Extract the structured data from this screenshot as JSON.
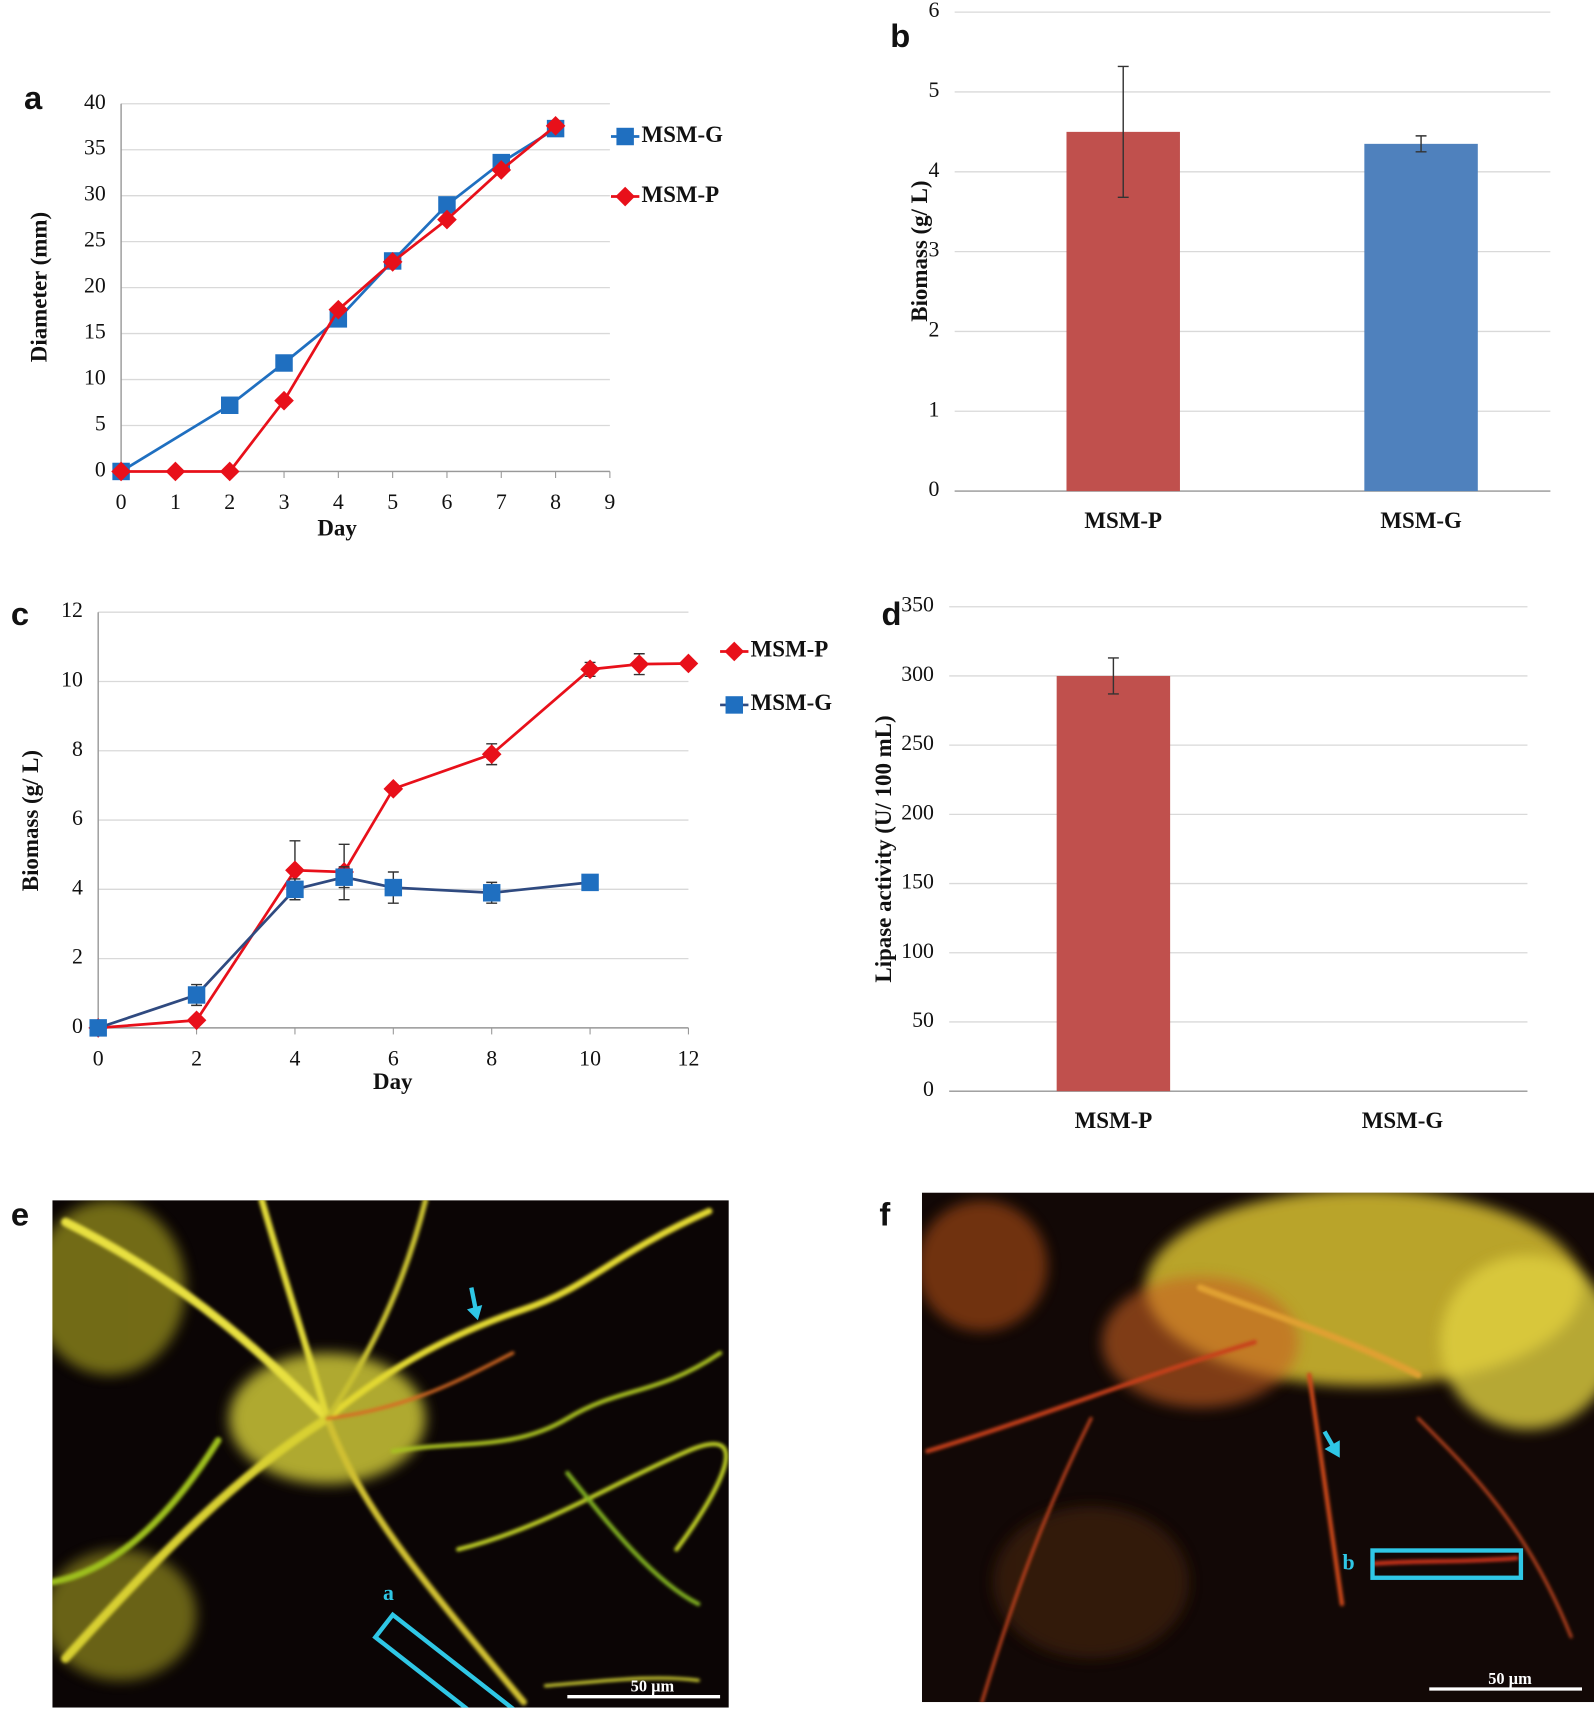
{
  "chart_data": [
    {
      "panel": "a",
      "type": "line",
      "x_label": "Day",
      "y_label": "Diameter (mm)",
      "xlim": [
        0,
        9
      ],
      "xticks": [
        0,
        1,
        2,
        3,
        4,
        5,
        6,
        7,
        8,
        9
      ],
      "ylim": [
        0,
        40
      ],
      "yticks": [
        0,
        5,
        10,
        15,
        20,
        25,
        30,
        35,
        40
      ],
      "grid": true,
      "legend": "right",
      "series": [
        {
          "name": "MSM-G",
          "color": "#1f6fc0",
          "line_color": "#1f6fc0",
          "marker": "square",
          "x": [
            0,
            2,
            3,
            4,
            5,
            6,
            7,
            8
          ],
          "values": [
            0,
            7.2,
            11.8,
            16.6,
            22.9,
            29,
            33.6,
            37.3
          ]
        },
        {
          "name": "MSM-P",
          "color": "#e8101a",
          "line_color": "#e8101a",
          "marker": "diamond",
          "x": [
            0,
            1,
            2,
            3,
            4,
            5,
            6,
            7,
            8
          ],
          "values": [
            0,
            0,
            0,
            7.7,
            17.6,
            22.8,
            27.4,
            32.8,
            37.6
          ]
        }
      ]
    },
    {
      "panel": "b",
      "type": "bar",
      "y_label": "Biomass (g/ L)",
      "categories": [
        "MSM-P",
        "MSM-G"
      ],
      "values": [
        4.5,
        4.35
      ],
      "errors": [
        0.82,
        0.1
      ],
      "colors": [
        "#c0504d",
        "#4f81bd"
      ],
      "ylim": [
        0,
        6
      ],
      "yticks": [
        0,
        1,
        2,
        3,
        4,
        5,
        6
      ],
      "grid": true
    },
    {
      "panel": "c",
      "type": "line",
      "x_label": "Day",
      "y_label": "Biomass (g/ L)",
      "xlim": [
        0,
        12
      ],
      "xticks": [
        0,
        2,
        4,
        6,
        8,
        10,
        12
      ],
      "ylim": [
        0,
        12
      ],
      "yticks": [
        0,
        2,
        4,
        6,
        8,
        10,
        12
      ],
      "grid": true,
      "legend": "right",
      "series": [
        {
          "name": "MSM-P",
          "color": "#e8101a",
          "line_color": "#e8101a",
          "marker": "diamond",
          "x": [
            0,
            2,
            4,
            5,
            6,
            8,
            10,
            11,
            12
          ],
          "values": [
            0,
            0.22,
            4.55,
            4.5,
            6.9,
            7.9,
            10.35,
            10.5,
            10.52
          ],
          "errors": [
            0,
            0,
            0.85,
            0.8,
            0.1,
            0.3,
            0.2,
            0.3,
            0.1
          ]
        },
        {
          "name": "MSM-G",
          "color": "#1f6fc0",
          "line_color": "#2f4a80",
          "marker": "square",
          "x": [
            0,
            2,
            4,
            5,
            6,
            8,
            10
          ],
          "values": [
            0,
            0.95,
            4.0,
            4.35,
            4.05,
            3.9,
            4.2
          ],
          "errors": [
            0,
            0.3,
            0.3,
            0.3,
            0.45,
            0.3,
            0.1
          ]
        }
      ]
    },
    {
      "panel": "d",
      "type": "bar",
      "y_label": "Lipase activity (U/ 100 mL)",
      "categories": [
        "MSM-P",
        "MSM-G"
      ],
      "values": [
        300,
        0
      ],
      "errors": [
        13,
        null
      ],
      "colors": [
        "#c0504d",
        "#4f81bd"
      ],
      "ylim": [
        0,
        350
      ],
      "yticks": [
        0,
        50,
        100,
        150,
        200,
        250,
        300,
        350
      ],
      "grid": true
    }
  ],
  "images": [
    {
      "panel": "e",
      "annotation": "a",
      "scale_bar": "50 µm"
    },
    {
      "panel": "f",
      "annotation": "b",
      "scale_bar": "50 µm"
    }
  ]
}
